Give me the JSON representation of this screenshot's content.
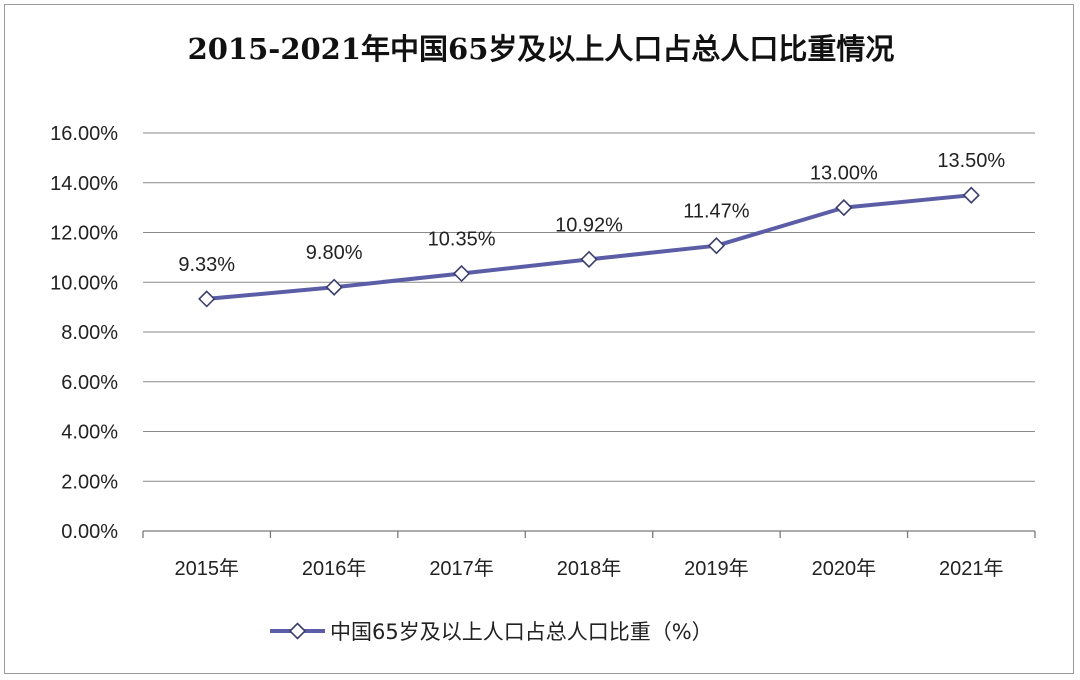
{
  "chart_data": {
    "type": "line",
    "title": "2015-2021年中国65岁及以上人口占总人口比重情况",
    "categories": [
      "2015年",
      "2016年",
      "2017年",
      "2018年",
      "2019年",
      "2020年",
      "2021年"
    ],
    "series": [
      {
        "name": "中国65岁及以上人口占总人口比重（%）",
        "values": [
          9.33,
          9.8,
          10.35,
          10.92,
          11.47,
          13.0,
          13.5
        ],
        "data_labels": [
          "9.33%",
          "9.80%",
          "10.35%",
          "10.92%",
          "11.47%",
          "13.00%",
          "13.50%"
        ],
        "color": "#5b5ea6",
        "marker": "diamond"
      }
    ],
    "ylim": [
      0,
      16
    ],
    "y_ticks": [
      "0.00%",
      "2.00%",
      "4.00%",
      "6.00%",
      "8.00%",
      "10.00%",
      "12.00%",
      "14.00%",
      "16.00%"
    ],
    "y_tick_values": [
      0,
      2,
      4,
      6,
      8,
      10,
      12,
      14,
      16
    ],
    "grid": true,
    "legend_position": "bottom",
    "gridline_color": "#8a8a8a"
  }
}
